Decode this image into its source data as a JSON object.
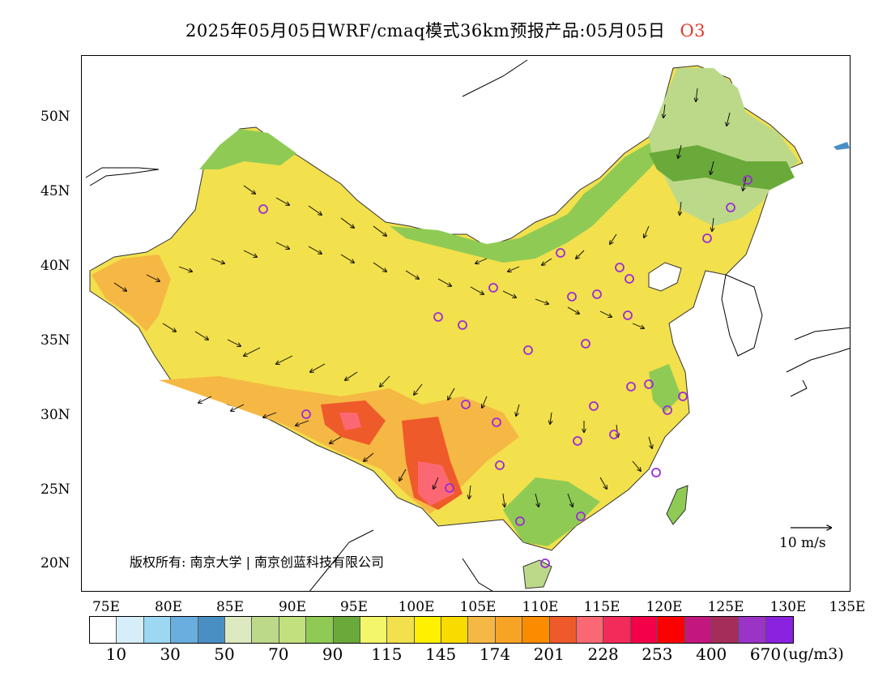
{
  "title": {
    "text": "2025年05月05日WRF/cmaq模式36km预报产品:05月05日",
    "species": "O3"
  },
  "axes": {
    "lat_labels": [
      "50N",
      "45N",
      "40N",
      "35N",
      "30N",
      "25N",
      "20N"
    ],
    "lon_labels": [
      "75E",
      "80E",
      "85E",
      "90E",
      "95E",
      "100E",
      "105E",
      "110E",
      "115E",
      "120E",
      "125E",
      "130E",
      "135E"
    ]
  },
  "wind_scale": {
    "label": "10  m/s"
  },
  "copyright": "版权所有: 南京大学 | 南京创蓝科技有限公司",
  "colorbar": {
    "colors": [
      "#ffffff",
      "#d6eefa",
      "#9dd8f3",
      "#6aaedf",
      "#4a8fc4",
      "#dde9c0",
      "#bcd98a",
      "#c3e07e",
      "#8fcb54",
      "#6aaa3a",
      "#f3f56a",
      "#f2e04c",
      "#fff000",
      "#fadb00",
      "#f6b844",
      "#f7a326",
      "#fb8c00",
      "#ef5a2a",
      "#fb6873",
      "#f32b5a",
      "#f30049",
      "#fc0000",
      "#c3177e",
      "#a52d5a",
      "#9b33c6",
      "#8a22e0"
    ],
    "labels": [
      "10",
      "30",
      "50",
      "70",
      "90",
      "115",
      "145",
      "174",
      "201",
      "228",
      "253",
      "400",
      "670"
    ],
    "unit": "(ug/m3)"
  },
  "sites": "purple-circle-markers",
  "colors": {
    "marker": "#9b2bd8"
  }
}
